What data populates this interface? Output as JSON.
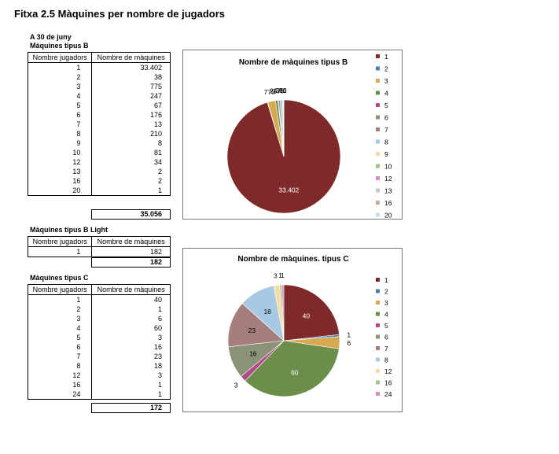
{
  "title": "Fitxa 2.5 Màquines per nombre de jugadors",
  "date_label": "A 30 de juny",
  "tables": {
    "b": {
      "label": "Màquines tipus B",
      "headers": [
        "Nombre jugadors",
        "Nombre de màquines"
      ],
      "rows": [
        [
          "1",
          "33.402"
        ],
        [
          "2",
          "38"
        ],
        [
          "3",
          "775"
        ],
        [
          "4",
          "247"
        ],
        [
          "5",
          "67"
        ],
        [
          "6",
          "176"
        ],
        [
          "7",
          "13"
        ],
        [
          "8",
          "210"
        ],
        [
          "9",
          "8"
        ],
        [
          "10",
          "81"
        ],
        [
          "12",
          "34"
        ],
        [
          "13",
          "2"
        ],
        [
          "16",
          "2"
        ],
        [
          "20",
          "1"
        ]
      ],
      "total": "35.056"
    },
    "b_light": {
      "label": "Màquines tipus B Light",
      "headers": [
        "Nombre jugadors",
        "Nombre de màquines"
      ],
      "rows": [
        [
          "1",
          "182"
        ]
      ],
      "total": "182"
    },
    "c": {
      "label": "Màquines tipus C",
      "headers": [
        "Nombre jugadors",
        "Nombre de màquines"
      ],
      "rows": [
        [
          "1",
          "40"
        ],
        [
          "2",
          "1"
        ],
        [
          "3",
          "6"
        ],
        [
          "4",
          "60"
        ],
        [
          "5",
          "3"
        ],
        [
          "6",
          "16"
        ],
        [
          "7",
          "23"
        ],
        [
          "8",
          "18"
        ],
        [
          "12",
          "3"
        ],
        [
          "16",
          "1"
        ],
        [
          "24",
          "1"
        ]
      ],
      "total": "172"
    }
  },
  "colors": [
    "#7f2a2a",
    "#4a7fb0",
    "#d7a84e",
    "#6b8e4a",
    "#b04a8a",
    "#8a9278",
    "#a77e7e",
    "#a8c9e2",
    "#f4dca6",
    "#a6bf8c",
    "#d68cbc",
    "#c8c8c8",
    "#c9a8a0",
    "#c9dcef"
  ],
  "chart_data": [
    {
      "type": "pie",
      "title": "Nombre de màquines tipus B",
      "categories": [
        "1",
        "2",
        "3",
        "4",
        "5",
        "6",
        "7",
        "8",
        "9",
        "10",
        "12",
        "13",
        "16",
        "20"
      ],
      "values": [
        33402,
        38,
        775,
        247,
        67,
        176,
        13,
        210,
        8,
        81,
        34,
        2,
        2,
        1
      ],
      "data_labels": [
        "33.402",
        "",
        "775",
        "247",
        "",
        "176",
        "",
        "210",
        "",
        "81",
        "",
        "",
        "",
        ""
      ],
      "legend": "right",
      "start_angle_deg": 0
    },
    {
      "type": "pie",
      "title": "Nombre de màquines. tipus C",
      "categories": [
        "1",
        "2",
        "3",
        "4",
        "5",
        "6",
        "7",
        "8",
        "12",
        "16",
        "24"
      ],
      "values": [
        40,
        1,
        6,
        60,
        3,
        16,
        23,
        18,
        3,
        1,
        1
      ],
      "data_labels": [
        "40",
        "1",
        "6",
        "60",
        "3",
        "16",
        "23",
        "18",
        "3",
        "1",
        "1"
      ],
      "legend": "right",
      "start_angle_deg": 0
    }
  ]
}
